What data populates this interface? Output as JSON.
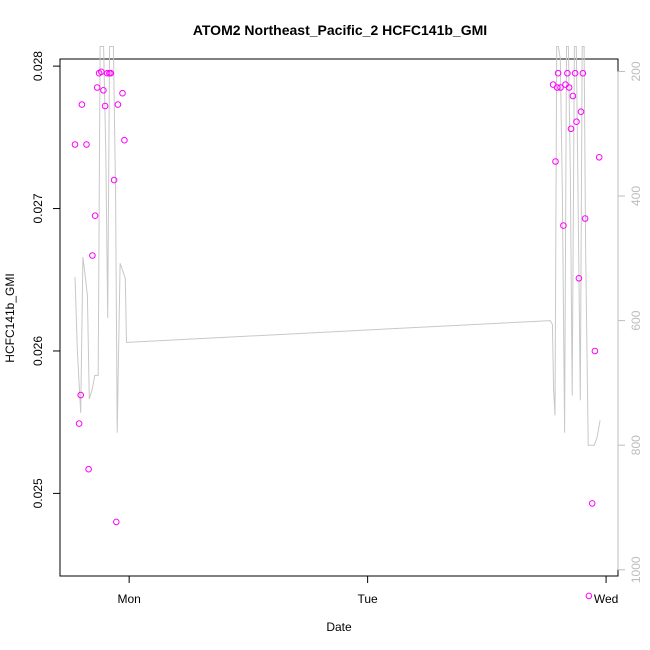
{
  "chart_data": {
    "type": "scatter",
    "title": "ATOM2 Northeast_Pacific_2 HCFC141b_GMI",
    "xlabel": "Date",
    "ylabel": "HCFC141b_GMI",
    "y_ticks": [
      "0.025",
      "0.026",
      "0.027",
      "0.028"
    ],
    "y_tick_values": [
      0.025,
      0.026,
      0.027,
      0.028
    ],
    "ylim": [
      0.02442,
      0.02805
    ],
    "x_ticks": [
      "Mon",
      "Tue",
      "Wed"
    ],
    "x_tick_values": [
      1.0,
      2.0,
      3.0
    ],
    "xlim": [
      0.71,
      3.05
    ],
    "right_axis": {
      "ticks": [
        "200",
        "400",
        "600",
        "800",
        "1000"
      ],
      "tick_values": [
        200,
        400,
        600,
        800,
        1000
      ],
      "lim": [
        1010,
        180
      ],
      "color": "#bdbdbd"
    },
    "point_color": "#ff00ff",
    "line_color": "#c8c8c8",
    "series": [
      {
        "points": [
          [
            0.773,
            0.02745
          ],
          [
            0.79,
            0.02549
          ],
          [
            0.797,
            0.02569
          ],
          [
            0.802,
            0.02773
          ],
          [
            0.821,
            0.02745
          ],
          [
            0.83,
            0.02517
          ],
          [
            0.846,
            0.02667
          ],
          [
            0.857,
            0.02695
          ],
          [
            0.866,
            0.02785
          ],
          [
            0.874,
            0.02795
          ],
          [
            0.883,
            0.02796
          ],
          [
            0.892,
            0.02783
          ],
          [
            0.899,
            0.02772
          ],
          [
            0.908,
            0.02795
          ],
          [
            0.917,
            0.02795
          ],
          [
            0.923,
            0.02795
          ],
          [
            0.937,
            0.0272
          ],
          [
            0.946,
            0.0248
          ],
          [
            0.953,
            0.02773
          ],
          [
            0.972,
            0.02781
          ],
          [
            0.98,
            0.02748
          ],
          [
            2.778,
            0.02787
          ],
          [
            2.788,
            0.02733
          ],
          [
            2.795,
            0.02785
          ],
          [
            2.799,
            0.02795
          ],
          [
            2.809,
            0.02785
          ],
          [
            2.821,
            0.02688
          ],
          [
            2.83,
            0.02787
          ],
          [
            2.838,
            0.02795
          ],
          [
            2.845,
            0.02785
          ],
          [
            2.853,
            0.02756
          ],
          [
            2.861,
            0.02779
          ],
          [
            2.87,
            0.02795
          ],
          [
            2.876,
            0.02761
          ],
          [
            2.886,
            0.02651
          ],
          [
            2.895,
            0.02768
          ],
          [
            2.903,
            0.02795
          ],
          [
            2.912,
            0.02693
          ],
          [
            2.928,
            0.02428
          ],
          [
            2.942,
            0.02493
          ],
          [
            2.953,
            0.026
          ],
          [
            2.971,
            0.02736
          ]
        ]
      },
      {
        "points": [
          [
            0.773,
            530
          ],
          [
            0.783,
            650
          ],
          [
            0.797,
            748
          ],
          [
            0.806,
            498
          ],
          [
            0.815,
            525
          ],
          [
            0.825,
            560
          ],
          [
            0.833,
            726
          ],
          [
            0.845,
            710
          ],
          [
            0.856,
            688
          ],
          [
            0.87,
            688
          ],
          [
            0.878,
            160
          ],
          [
            0.886,
            160
          ],
          [
            0.893,
            160
          ],
          [
            0.902,
            330
          ],
          [
            0.91,
            596
          ],
          [
            0.918,
            160
          ],
          [
            0.926,
            160
          ],
          [
            0.934,
            160
          ],
          [
            0.943,
            400
          ],
          [
            0.95,
            780
          ],
          [
            0.962,
            508
          ],
          [
            0.973,
            520
          ],
          [
            0.984,
            532
          ],
          [
            0.989,
            635
          ],
          [
            2.766,
            600
          ],
          [
            2.775,
            606
          ],
          [
            2.78,
            710
          ],
          [
            2.786,
            752
          ],
          [
            2.793,
            160
          ],
          [
            2.8,
            160
          ],
          [
            2.808,
            180
          ],
          [
            2.817,
            400
          ],
          [
            2.826,
            780
          ],
          [
            2.834,
            160
          ],
          [
            2.842,
            160
          ],
          [
            2.85,
            360
          ],
          [
            2.858,
            720
          ],
          [
            2.867,
            160
          ],
          [
            2.875,
            160
          ],
          [
            2.883,
            420
          ],
          [
            2.892,
            728
          ],
          [
            2.9,
            160
          ],
          [
            2.908,
            160
          ],
          [
            2.914,
            480
          ],
          [
            2.925,
            800
          ],
          [
            2.95,
            800
          ],
          [
            2.962,
            788
          ],
          [
            2.975,
            760
          ]
        ]
      }
    ]
  }
}
